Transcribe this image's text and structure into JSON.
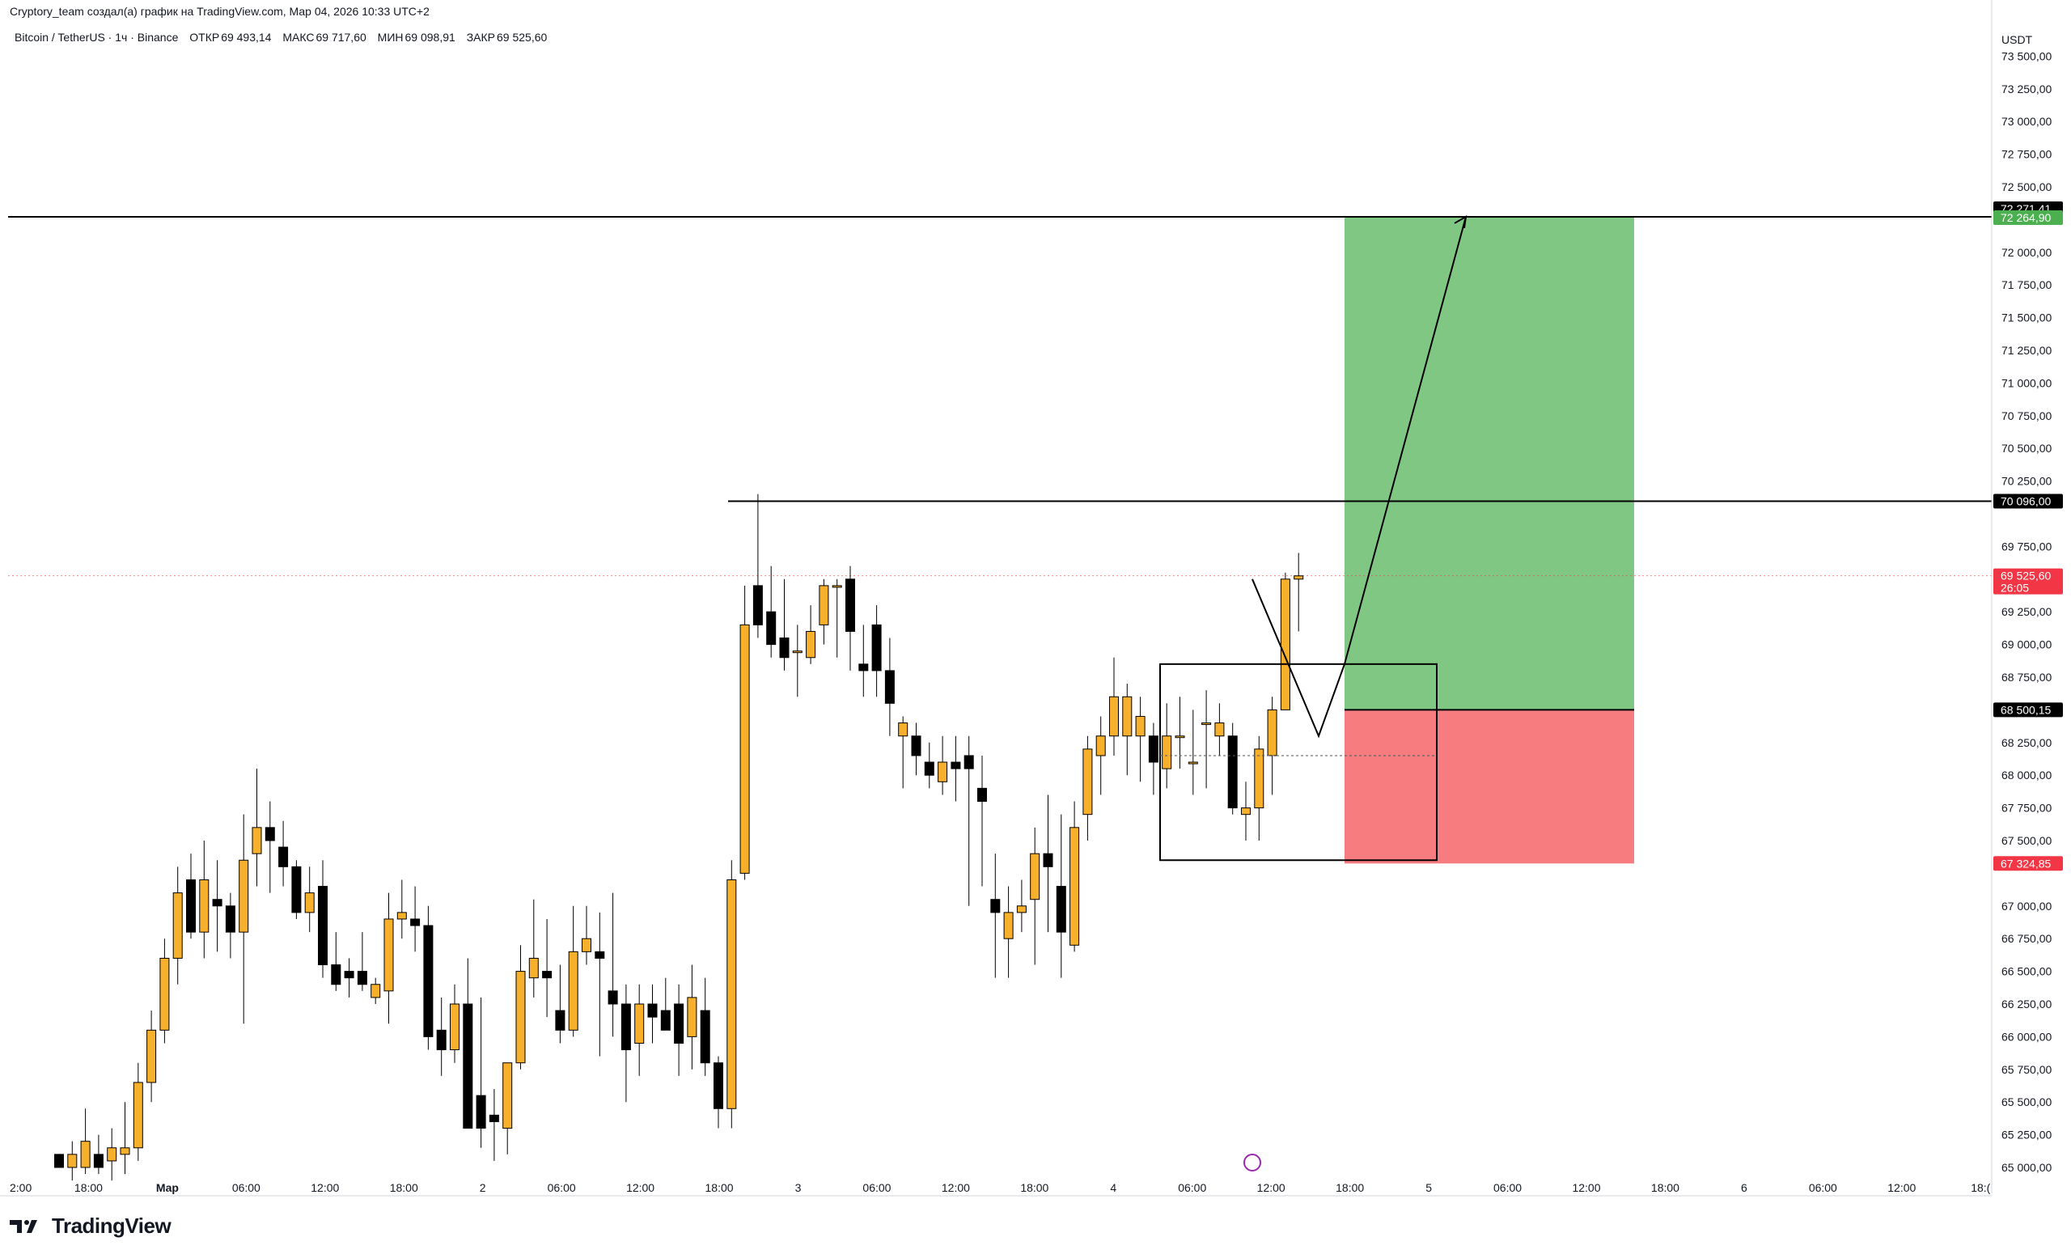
{
  "header": {
    "caption": "Cryptory_team создал(а) график на TradingView.com, Мар 04, 2026 10:33 UTC+2",
    "symbol": "Bitcoin / TetherUS · 1ч · Binance",
    "open_label": "ОТКР",
    "open_value": "69 493,14",
    "high_label": "МАКС",
    "high_value": "69 717,60",
    "low_label": "МИН",
    "low_value": "69 098,91",
    "close_label": "ЗАКР",
    "close_value": "69 525,60"
  },
  "branding": {
    "logo_text": "TradingView"
  },
  "colors": {
    "bull_body": "#f7b02c",
    "bear_body": "#000000",
    "profit_zone": "#81c784",
    "loss_zone": "#f77c80",
    "last_price_tag": "#f23645",
    "tp_tag": "#4caf50",
    "level_tag": "#000000",
    "event_icon": "#9c27b0"
  },
  "chart_data": {
    "type": "candlestick",
    "symbol": "Bitcoin / TetherUS",
    "interval": "1ч",
    "exchange": "Binance",
    "y_axis_unit": "USDT",
    "ylim": [
      64950,
      73650
    ],
    "y_ticks": [
      "73 500,00",
      "73 250,00",
      "73 000,00",
      "72 750,00",
      "72 500,00",
      "72 000,00",
      "71 750,00",
      "71 500,00",
      "71 250,00",
      "71 000,00",
      "70 750,00",
      "70 500,00",
      "70 250,00",
      "69 750,00",
      "69 250,00",
      "69 000,00",
      "68 750,00",
      "68 250,00",
      "68 000,00",
      "67 750,00",
      "67 500,00",
      "67 000,00",
      "66 750,00",
      "66 500,00",
      "66 250,00",
      "66 000,00",
      "65 750,00",
      "65 500,00",
      "65 250,00",
      "65 000,00"
    ],
    "x_ticks": [
      "2:00",
      "18:00",
      "Мар",
      "06:00",
      "12:00",
      "18:00",
      "2",
      "06:00",
      "12:00",
      "18:00",
      "3",
      "06:00",
      "12:00",
      "18:00",
      "4",
      "06:00",
      "12:00",
      "18:00",
      "5",
      "06:00",
      "12:00",
      "18:00",
      "6",
      "06:00",
      "12:00",
      "18:("
    ],
    "candles": [
      [
        65100,
        65100,
        65000,
        65000
      ],
      [
        65000,
        65200,
        64900,
        65100
      ],
      [
        65000,
        65450,
        64950,
        65200
      ],
      [
        65100,
        65250,
        64950,
        65000
      ],
      [
        65050,
        65300,
        64900,
        65150
      ],
      [
        65100,
        65500,
        64950,
        65150
      ],
      [
        65150,
        65800,
        65050,
        65650
      ],
      [
        65650,
        66200,
        65500,
        66050
      ],
      [
        66050,
        66750,
        65950,
        66600
      ],
      [
        66600,
        67300,
        66400,
        67100
      ],
      [
        67200,
        67400,
        66750,
        66800
      ],
      [
        66800,
        67500,
        66600,
        67200
      ],
      [
        67050,
        67350,
        66650,
        67000
      ],
      [
        67000,
        67100,
        66600,
        66800
      ],
      [
        66800,
        67700,
        66100,
        67350
      ],
      [
        67400,
        68050,
        67150,
        67600
      ],
      [
        67600,
        67800,
        67100,
        67500
      ],
      [
        67450,
        67650,
        67150,
        67300
      ],
      [
        67300,
        67350,
        66900,
        66950
      ],
      [
        66950,
        67300,
        66800,
        67100
      ],
      [
        67150,
        67350,
        66450,
        66550
      ],
      [
        66550,
        66800,
        66350,
        66400
      ],
      [
        66500,
        66600,
        66300,
        66450
      ],
      [
        66500,
        66800,
        66350,
        66400
      ],
      [
        66300,
        66450,
        66250,
        66400
      ],
      [
        66350,
        67100,
        66100,
        66900
      ],
      [
        66900,
        67200,
        66750,
        66950
      ],
      [
        66900,
        67150,
        66650,
        66850
      ],
      [
        66850,
        67000,
        65900,
        66000
      ],
      [
        66050,
        66300,
        65700,
        65900
      ],
      [
        65900,
        66400,
        65800,
        66250
      ],
      [
        66250,
        66600,
        65300,
        65300
      ],
      [
        65550,
        66300,
        65150,
        65300
      ],
      [
        65400,
        65600,
        65050,
        65350
      ],
      [
        65300,
        65800,
        65100,
        65800
      ],
      [
        65800,
        66700,
        65750,
        66500
      ],
      [
        66450,
        67050,
        66300,
        66600
      ],
      [
        66500,
        66900,
        66150,
        66450
      ],
      [
        66200,
        66550,
        65950,
        66050
      ],
      [
        66050,
        67000,
        66000,
        66650
      ],
      [
        66650,
        67000,
        66550,
        66750
      ],
      [
        66650,
        66950,
        65850,
        66600
      ],
      [
        66350,
        67100,
        66000,
        66250
      ],
      [
        66250,
        66400,
        65500,
        65900
      ],
      [
        65950,
        66400,
        65700,
        66250
      ],
      [
        66250,
        66400,
        65950,
        66150
      ],
      [
        66200,
        66450,
        66050,
        66050
      ],
      [
        66250,
        66400,
        65700,
        65950
      ],
      [
        66000,
        66550,
        65750,
        66300
      ],
      [
        66200,
        66450,
        65700,
        65800
      ],
      [
        65800,
        65850,
        65300,
        65450
      ],
      [
        65450,
        67350,
        65300,
        67200
      ],
      [
        67250,
        69450,
        67200,
        69150
      ],
      [
        69450,
        70150,
        69050,
        69150
      ],
      [
        69250,
        69600,
        68900,
        69000
      ],
      [
        69050,
        69500,
        68800,
        68900
      ],
      [
        68950,
        69150,
        68600,
        68950
      ],
      [
        68900,
        69300,
        68850,
        69100
      ],
      [
        69150,
        69500,
        69000,
        69450
      ],
      [
        69450,
        69500,
        68900,
        69450
      ],
      [
        69500,
        69600,
        68800,
        69100
      ],
      [
        68850,
        69150,
        68600,
        68800
      ],
      [
        69150,
        69300,
        68600,
        68800
      ],
      [
        68800,
        69050,
        68300,
        68550
      ],
      [
        68300,
        68450,
        67900,
        68400
      ],
      [
        68300,
        68400,
        68000,
        68150
      ],
      [
        68100,
        68250,
        67900,
        68000
      ],
      [
        67950,
        68300,
        67850,
        68100
      ],
      [
        68100,
        68300,
        67800,
        68050
      ],
      [
        68150,
        68300,
        67000,
        68050
      ],
      [
        67900,
        68150,
        67150,
        67800
      ],
      [
        67050,
        67400,
        66450,
        66950
      ],
      [
        66750,
        67150,
        66450,
        66950
      ],
      [
        66950,
        67200,
        66800,
        67000
      ],
      [
        67050,
        67600,
        66550,
        67400
      ],
      [
        67400,
        67850,
        66800,
        67300
      ],
      [
        67150,
        67700,
        66450,
        66800
      ],
      [
        66700,
        67800,
        66650,
        67600
      ],
      [
        67700,
        68300,
        67500,
        68200
      ],
      [
        68150,
        68450,
        67850,
        68300
      ],
      [
        68300,
        68900,
        68150,
        68600
      ],
      [
        68300,
        68700,
        68000,
        68600
      ],
      [
        68300,
        68600,
        67950,
        68450
      ],
      [
        68300,
        68400,
        67850,
        68100
      ],
      [
        68050,
        68550,
        67900,
        68300
      ],
      [
        68300,
        68600,
        68050,
        68300
      ],
      [
        68100,
        68500,
        67850,
        68100
      ],
      [
        68400,
        68650,
        67900,
        68400
      ],
      [
        68300,
        68550,
        68150,
        68400
      ],
      [
        68300,
        68400,
        67700,
        67750
      ],
      [
        67700,
        67950,
        67500,
        67750
      ],
      [
        67750,
        68300,
        67500,
        68200
      ],
      [
        68150,
        68600,
        67850,
        68500
      ],
      [
        68500,
        69550,
        68500,
        69500
      ],
      [
        69500,
        69700,
        69100,
        69525
      ]
    ],
    "annotations": {
      "horizontal_levels": [
        72271.41,
        70096.0
      ],
      "current_price": 69525.6,
      "bar_countdown": "26:05",
      "long_position": {
        "entry": 68500.15,
        "take_profit": 72264.9,
        "stop_loss": 67324.85
      },
      "range_box": {
        "top": 68850,
        "bottom": 67350,
        "mid": 68150
      },
      "projection_path": [
        69500,
        68300,
        68850,
        72271.41
      ]
    },
    "price_tags": [
      {
        "value": "72 271,41",
        "kind": "level"
      },
      {
        "value": "72 264,90",
        "kind": "tp"
      },
      {
        "value": "70 096,00",
        "kind": "level"
      },
      {
        "value": "69 525,60",
        "kind": "last"
      },
      {
        "value": "68 500,15",
        "kind": "level"
      },
      {
        "value": "67 324,85",
        "kind": "sl"
      }
    ],
    "grid": false,
    "legend": "none"
  }
}
